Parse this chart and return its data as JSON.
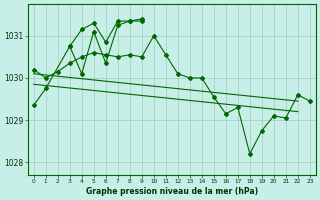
{
  "bg_color": "#c8eee8",
  "grid_color": "#a0ccbb",
  "line_color": "#006600",
  "xlabel": "Graphe pression niveau de la mer (hPa)",
  "xlim": [
    -0.5,
    23.5
  ],
  "ylim": [
    1027.7,
    1031.75
  ],
  "yticks": [
    1028,
    1029,
    1030,
    1031
  ],
  "xticks": [
    0,
    1,
    2,
    3,
    4,
    5,
    6,
    7,
    8,
    9,
    10,
    11,
    12,
    13,
    14,
    15,
    16,
    17,
    18,
    19,
    20,
    21,
    22,
    23
  ],
  "series": [
    {
      "x": [
        0,
        1,
        3,
        4,
        5,
        6,
        7,
        8,
        9
      ],
      "y": [
        1029.35,
        1029.75,
        1030.75,
        1031.15,
        1031.3,
        1030.85,
        1031.35,
        1031.35,
        1031.35
      ],
      "has_markers": true
    },
    {
      "x": [
        3,
        4,
        5,
        6,
        7,
        8,
        9
      ],
      "y": [
        1030.75,
        1030.1,
        1031.1,
        1030.35,
        1031.25,
        1031.35,
        1031.4
      ],
      "has_markers": true
    },
    {
      "x": [
        0,
        1,
        2,
        3,
        4,
        5,
        6,
        7,
        8,
        9,
        10,
        11,
        12,
        13,
        14,
        15,
        16,
        17,
        18,
        19,
        20,
        21,
        22,
        23
      ],
      "y": [
        1030.2,
        1030.0,
        1030.15,
        1030.35,
        1030.5,
        1030.6,
        1030.55,
        1030.5,
        1030.55,
        1030.5,
        1031.0,
        1030.55,
        1030.1,
        1030.0,
        1030.0,
        1029.55,
        1029.15,
        1029.3,
        1028.2,
        1028.75,
        1029.1,
        1029.05,
        1029.6,
        1029.45
      ],
      "has_markers": true
    },
    {
      "x": [
        0,
        22
      ],
      "y": [
        1030.1,
        1029.45
      ],
      "has_markers": false
    },
    {
      "x": [
        0,
        22
      ],
      "y": [
        1029.85,
        1029.2
      ],
      "has_markers": false
    }
  ]
}
